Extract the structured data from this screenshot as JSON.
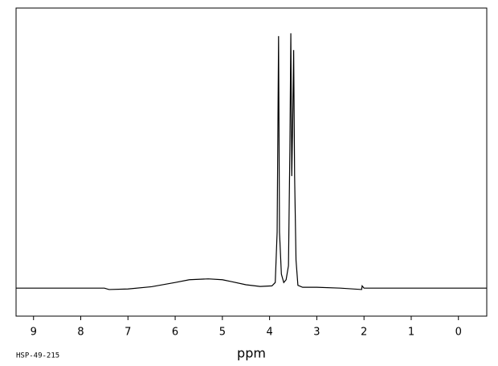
{
  "chart_data": {
    "type": "line",
    "x_label": "ppm",
    "annotation": "HSP-49-215",
    "xlim": [
      9.37,
      -0.6
    ],
    "ylim": [
      -10,
      100
    ],
    "xticks": [
      9,
      8,
      7,
      6,
      5,
      4,
      3,
      2,
      1,
      0
    ],
    "color": "#000000",
    "x": [
      9.37,
      8.0,
      7.5,
      7.4,
      7.0,
      6.5,
      6.0,
      5.7,
      5.3,
      5.0,
      4.8,
      4.5,
      4.2,
      3.95,
      3.88,
      3.84,
      3.81,
      3.79,
      3.75,
      3.7,
      3.65,
      3.6,
      3.57,
      3.55,
      3.53,
      3.51,
      3.49,
      3.47,
      3.44,
      3.4,
      3.3,
      3.0,
      2.5,
      2.05,
      2.04,
      2.0,
      1.0,
      0,
      -0.6
    ],
    "values": [
      0,
      0,
      0,
      -0.5,
      -0.3,
      0.5,
      2,
      3,
      3.3,
      3,
      2.3,
      1.2,
      0.6,
      0.8,
      2,
      20,
      90,
      20,
      5,
      2,
      3,
      8,
      50,
      91,
      40,
      60,
      85,
      40,
      10,
      1,
      0.3,
      0.3,
      0,
      -0.5,
      0.8,
      0,
      0,
      0,
      0
    ]
  }
}
